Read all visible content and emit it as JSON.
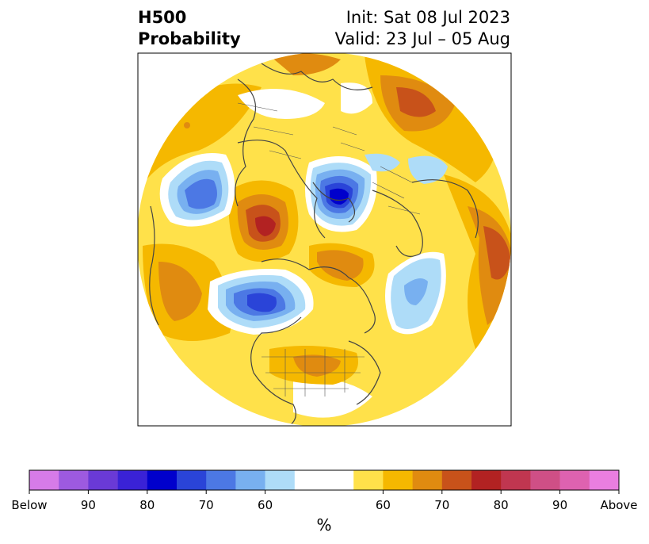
{
  "header": {
    "title_line1": "H500",
    "title_line2": "Probability",
    "init": "Init: Sat 08 Jul 2023",
    "valid": "Valid: 23 Jul – 05 Aug"
  },
  "colorbar": {
    "unit_label": "%",
    "tick_labels": [
      "Below",
      "90",
      "80",
      "70",
      "60",
      "60",
      "70",
      "80",
      "90",
      "Above"
    ],
    "colors": [
      "#d67be8",
      "#9d5ae0",
      "#6a3ad6",
      "#3a22d6",
      "#0000cc",
      "#2a44d8",
      "#4c78e4",
      "#78b0f0",
      "#aedcf8",
      "#ffffff",
      "#ffe14a",
      "#f5b800",
      "#e08b10",
      "#c8521a",
      "#b22222",
      "#c03650",
      "#cf4f86",
      "#de62b0",
      "#ea7ee0"
    ]
  },
  "map": {
    "projection": "north-polar-stereographic",
    "field": "500 hPa height anomaly probability"
  }
}
